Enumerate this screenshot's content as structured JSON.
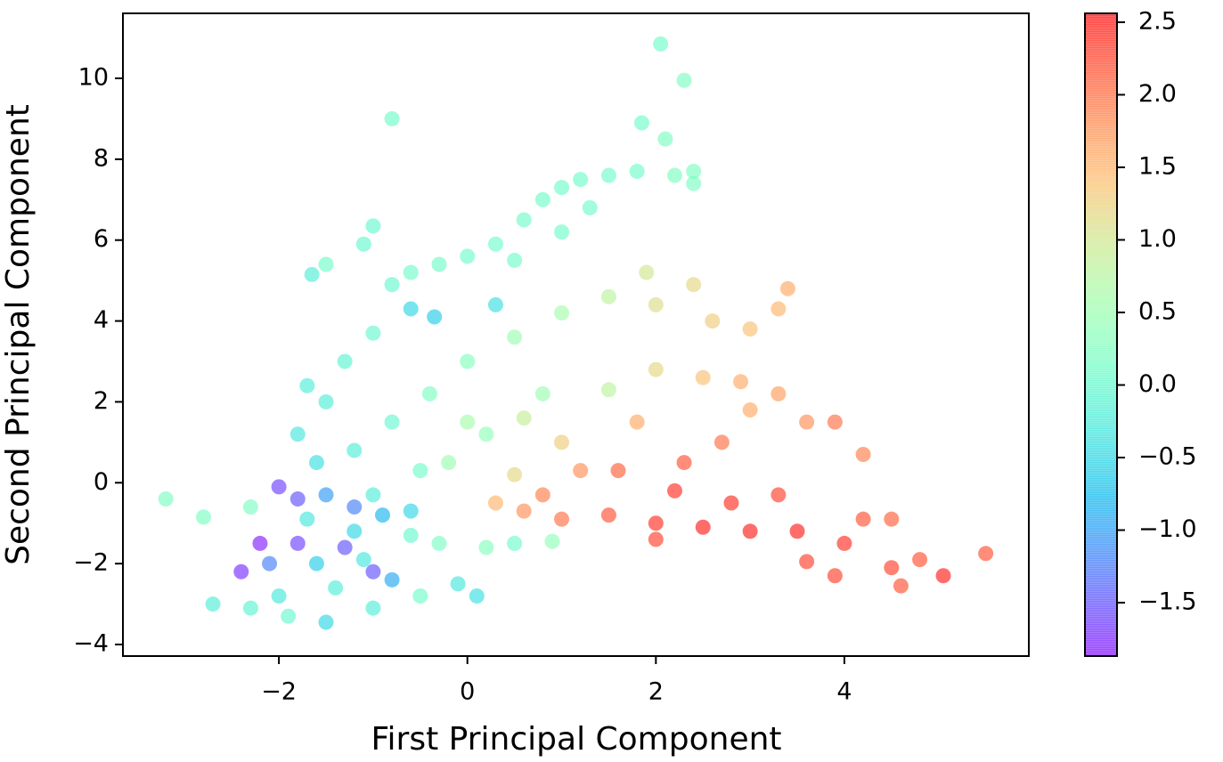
{
  "chart_data": {
    "type": "scatter",
    "x_label": "First Principal Component",
    "y_label": "Second Principal Component",
    "cmap": "rainbow",
    "alpha": 0.6,
    "x": [
      2.05,
      2.3,
      -0.8,
      1.85,
      2.1,
      -3.2,
      5.5,
      5.05,
      -1.65,
      -1.0,
      -1.1,
      -1.5,
      0.0,
      0.3,
      0.6,
      0.8,
      1.0,
      1.2,
      1.5,
      1.8,
      2.2,
      2.4,
      2.4,
      1.3,
      1.0,
      0.5,
      -0.3,
      -0.6,
      -0.8,
      -0.6,
      -0.35,
      0.3,
      -1.0,
      -1.3,
      -1.5,
      -1.8,
      -1.6,
      -1.5,
      -1.8,
      -2.0,
      -1.2,
      -0.9,
      -0.6,
      -2.2,
      -1.8,
      -1.3,
      -2.4,
      -2.1,
      -1.6,
      -1.0,
      -0.8,
      -1.7,
      -2.7,
      -2.3,
      -1.9,
      -1.5,
      -1.0,
      -0.5,
      -0.1,
      0.1,
      -1.2,
      -0.6,
      -0.3,
      0.2,
      0.5,
      0.9,
      -2.0,
      -1.4,
      -2.8,
      -2.3,
      -1.0,
      -1.1,
      -0.5,
      -1.2,
      -0.8,
      -0.4,
      0.0,
      0.5,
      1.0,
      1.5,
      1.9,
      2.0,
      2.4,
      2.6,
      3.0,
      3.4,
      3.3,
      0.8,
      0.2,
      -0.2,
      0.0,
      0.6,
      0.5,
      1.0,
      1.5,
      2.0,
      2.5,
      2.9,
      3.3,
      3.6,
      3.9,
      4.2,
      3.0,
      1.8,
      1.2,
      0.8,
      0.3,
      1.5,
      2.0,
      2.5,
      3.0,
      3.5,
      4.0,
      4.5,
      4.8,
      4.6,
      3.9,
      3.6,
      2.2,
      2.8,
      3.3,
      4.2,
      4.5,
      1.6,
      2.3,
      2.7,
      2.0,
      1.0,
      0.6,
      -1.7
    ],
    "y": [
      10.85,
      9.95,
      9.0,
      8.9,
      8.5,
      -0.4,
      -1.75,
      -2.3,
      5.15,
      6.35,
      5.9,
      5.4,
      5.6,
      5.9,
      6.5,
      7.0,
      7.3,
      7.5,
      7.6,
      7.7,
      7.6,
      7.7,
      7.4,
      6.8,
      6.2,
      5.5,
      5.4,
      5.2,
      4.9,
      4.3,
      4.1,
      4.4,
      3.7,
      3.0,
      2.0,
      1.2,
      0.5,
      -0.3,
      -0.4,
      -0.1,
      -0.6,
      -0.8,
      -0.7,
      -1.5,
      -1.5,
      -1.6,
      -2.2,
      -2.0,
      -2.0,
      -2.2,
      -2.4,
      -0.9,
      -3.0,
      -3.1,
      -3.3,
      -3.45,
      -3.1,
      -2.8,
      -2.5,
      -2.8,
      -1.2,
      -1.3,
      -1.5,
      -1.6,
      -1.5,
      -1.45,
      -2.8,
      -2.6,
      -0.85,
      -0.6,
      -0.3,
      -1.9,
      0.3,
      0.8,
      1.5,
      2.2,
      3.0,
      3.6,
      4.2,
      4.6,
      5.2,
      4.4,
      4.9,
      4.0,
      3.8,
      4.8,
      4.3,
      2.2,
      1.2,
      0.5,
      1.5,
      1.6,
      0.2,
      1.0,
      2.3,
      2.8,
      2.6,
      2.5,
      2.2,
      1.5,
      1.5,
      0.7,
      1.8,
      1.5,
      0.3,
      -0.3,
      -0.5,
      -0.8,
      -1.0,
      -1.1,
      -1.2,
      -1.2,
      -1.5,
      -2.1,
      -1.9,
      -2.55,
      -2.3,
      -1.95,
      -0.2,
      -0.5,
      -0.3,
      -0.9,
      -0.9,
      0.3,
      0.5,
      1.0,
      -1.4,
      -0.9,
      -0.7,
      2.4
    ],
    "color_values": [
      0.1,
      0.2,
      0.1,
      0.1,
      0.2,
      0.2,
      2.2,
      2.5,
      -0.2,
      0.0,
      0.0,
      0.1,
      0.1,
      0.1,
      0.1,
      0.1,
      0.1,
      0.1,
      0.1,
      0.1,
      0.2,
      0.2,
      0.2,
      0.1,
      0.1,
      0.1,
      0.1,
      0.1,
      0.0,
      -0.5,
      -0.6,
      -0.4,
      0.0,
      -0.1,
      -0.2,
      -0.3,
      -0.4,
      -1.0,
      -1.5,
      -1.6,
      -1.2,
      -0.8,
      -0.5,
      -1.8,
      -1.6,
      -1.5,
      -1.7,
      -1.2,
      -0.6,
      -1.5,
      -0.9,
      -0.3,
      -0.2,
      -0.1,
      0.0,
      -0.5,
      -0.2,
      0.1,
      -0.3,
      -0.4,
      -0.5,
      0.0,
      0.2,
      0.3,
      0.1,
      0.4,
      -0.3,
      -0.2,
      0.2,
      0.2,
      -0.2,
      -0.3,
      0.1,
      -0.2,
      0.0,
      0.2,
      0.3,
      0.5,
      0.6,
      0.8,
      1.0,
      1.1,
      1.2,
      1.3,
      1.4,
      1.6,
      1.5,
      0.5,
      0.4,
      0.5,
      0.6,
      0.9,
      1.2,
      1.3,
      0.8,
      1.2,
      1.4,
      1.6,
      1.7,
      1.8,
      2.0,
      1.9,
      1.6,
      1.6,
      1.8,
      1.9,
      1.5,
      2.2,
      2.4,
      2.5,
      2.5,
      2.5,
      2.4,
      2.3,
      2.2,
      2.2,
      2.3,
      2.3,
      2.4,
      2.4,
      2.3,
      2.2,
      2.1,
      2.1,
      2.2,
      2.0,
      2.3,
      2.0,
      1.8,
      -0.2
    ],
    "xlim": [
      -3.655,
      5.957
    ],
    "ylim": [
      -4.286,
      11.607
    ],
    "clim": [
      -1.868,
      2.561
    ],
    "xticks": [
      {
        "value": -2,
        "label": "−2"
      },
      0,
      2,
      4
    ],
    "yticks": [
      {
        "value": -4,
        "label": "−4"
      },
      {
        "value": -2,
        "label": "−2"
      },
      0,
      2,
      4,
      6,
      8,
      10
    ],
    "cticks": [
      {
        "value": -1.5,
        "label": "−1.5"
      },
      {
        "value": -1.0,
        "label": "−1.0"
      },
      {
        "value": -0.5,
        "label": "−0.5"
      },
      {
        "value": 0.0,
        "label": "0.0"
      },
      0.5,
      {
        "value": 1.0,
        "label": "1.0"
      },
      1.5,
      {
        "value": 2.0,
        "label": "2.0"
      },
      2.5
    ]
  }
}
